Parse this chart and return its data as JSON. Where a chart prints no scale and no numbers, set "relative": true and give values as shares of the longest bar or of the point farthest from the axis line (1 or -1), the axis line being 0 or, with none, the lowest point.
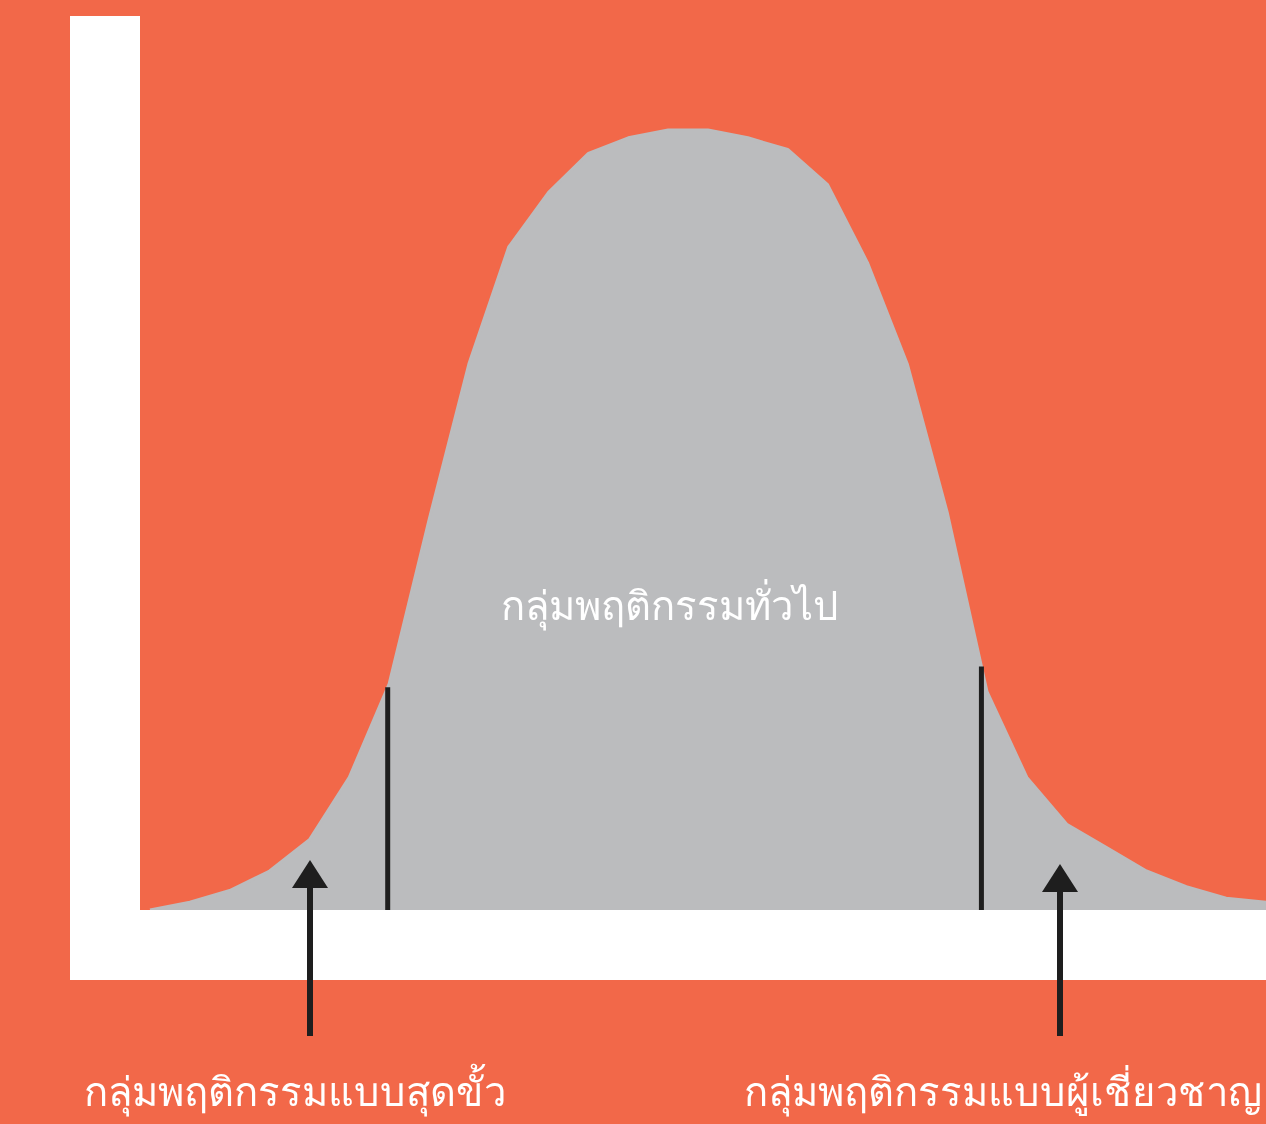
{
  "chart_data": {
    "type": "area",
    "relative": true,
    "categories": [
      null,
      null,
      null,
      null,
      null,
      null,
      null,
      null,
      null,
      null,
      null,
      null,
      null,
      null,
      null,
      null,
      null,
      null,
      null,
      null,
      null,
      null,
      null,
      null,
      null,
      null,
      null,
      null,
      null
    ],
    "series": [
      {
        "color": "#bbbcbe",
        "values": [
          0,
          0.01,
          0.025,
          0.05,
          0.09,
          0.17,
          0.29,
          0.5,
          0.7,
          0.85,
          0.92,
          0.97,
          0.99,
          1.0,
          1.0,
          0.99,
          0.975,
          0.93,
          0.83,
          0.7,
          0.51,
          0.28,
          0.17,
          0.11,
          0.08,
          0.05,
          0.03,
          0.015,
          0.01
        ]
      }
    ],
    "annotations": [
      "กลุ่มพฤติกรรมทั่วไป",
      "กลุ่มพฤติกรรมแบบสุดขั้ว",
      "กลุ่มพฤติกรรมแบบผู้เชี่ยวชาญ"
    ]
  }
}
